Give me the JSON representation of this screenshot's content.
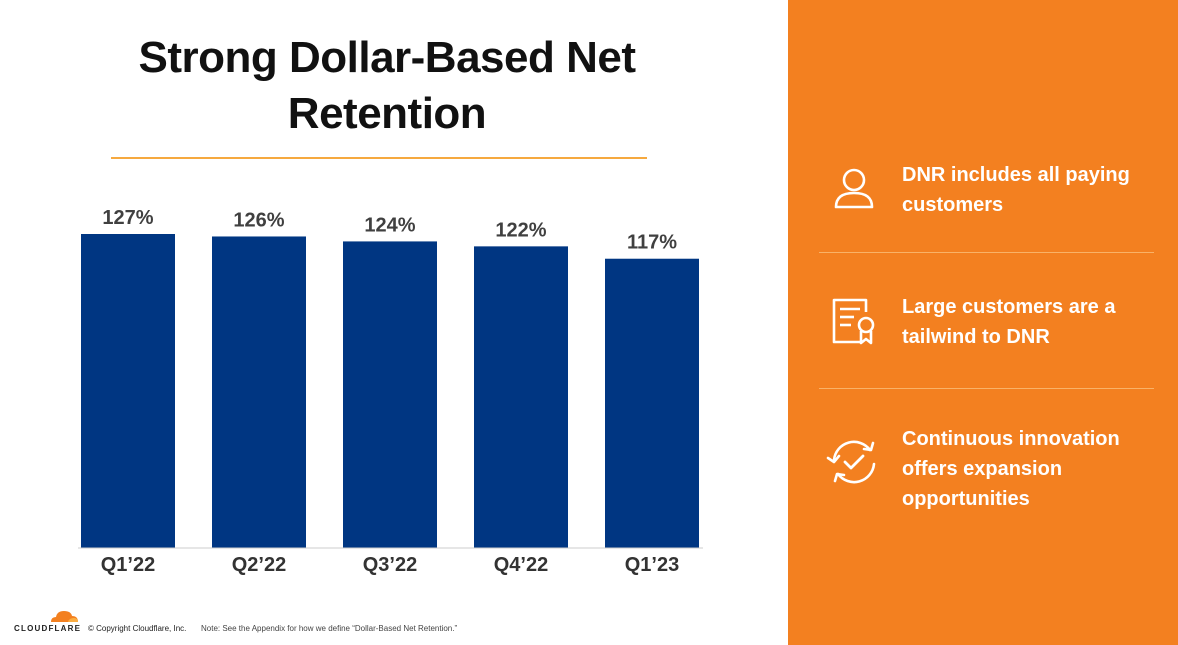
{
  "title": "Strong Dollar-Based Net Retention",
  "chart_data": {
    "type": "bar",
    "categories": [
      "Q1’22",
      "Q2’22",
      "Q3’22",
      "Q4’22",
      "Q1’23"
    ],
    "values": [
      127,
      126,
      124,
      122,
      117
    ],
    "data_labels": [
      "127%",
      "126%",
      "124%",
      "122%",
      "117%"
    ],
    "ylim": [
      0,
      127
    ],
    "bar_color": "#003682",
    "grid": false,
    "legend": "none"
  },
  "sidebar": {
    "background": "#f38020",
    "items": [
      {
        "icon": "person-icon",
        "text": "DNR includes all paying customers"
      },
      {
        "icon": "certificate-icon",
        "text": "Large customers are a tailwind to DNR"
      },
      {
        "icon": "cycle-check-icon",
        "text": "Continuous innovation offers expansion opportunities"
      }
    ]
  },
  "footer": {
    "logo_text": "CLOUDFLARE",
    "copyright": "© Copyright Cloudflare, Inc.",
    "note": "Note: See the Appendix for how we define “Dollar-Based Net Retention.”"
  }
}
